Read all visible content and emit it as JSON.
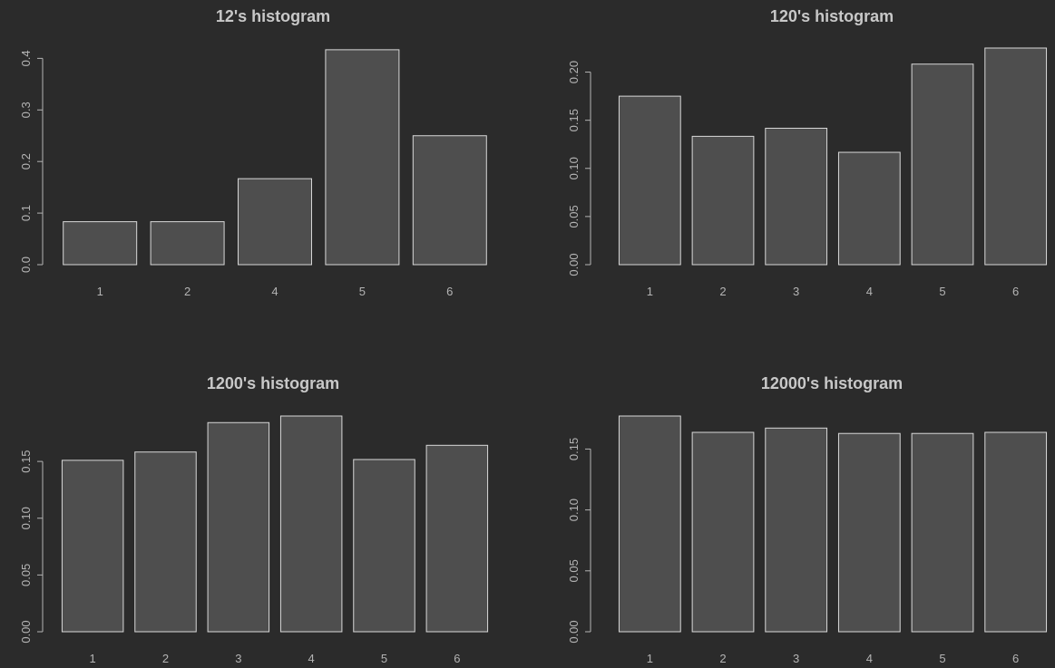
{
  "background": "#2b2b2b",
  "bar_fill": "#4e4e4e",
  "bar_stroke": "#d8d8d8",
  "text_color": "#b4b4b4",
  "chart_data": [
    {
      "type": "bar",
      "title": "12's histogram",
      "categories": [
        "1",
        "2",
        "4",
        "5",
        "6"
      ],
      "values": [
        0.0833,
        0.0833,
        0.1667,
        0.4167,
        0.25
      ],
      "ylim": [
        0,
        0.42
      ],
      "yticks": [
        0.0,
        0.1,
        0.2,
        0.3,
        0.4
      ],
      "ytick_labels": [
        "0.0",
        "0.1",
        "0.2",
        "0.3",
        "0.4"
      ],
      "xlabel": "",
      "ylabel": ""
    },
    {
      "type": "bar",
      "title": "120's histogram",
      "categories": [
        "1",
        "2",
        "3",
        "4",
        "5",
        "6"
      ],
      "values": [
        0.175,
        0.1333,
        0.1417,
        0.1167,
        0.2083,
        0.225
      ],
      "ylim": [
        0,
        0.225
      ],
      "yticks": [
        0.0,
        0.05,
        0.1,
        0.15,
        0.2
      ],
      "ytick_labels": [
        "0.00",
        "0.05",
        "0.10",
        "0.15",
        "0.20"
      ],
      "xlabel": "",
      "ylabel": ""
    },
    {
      "type": "bar",
      "title": "1200's histogram",
      "categories": [
        "1",
        "2",
        "3",
        "4",
        "5",
        "6"
      ],
      "values": [
        0.151,
        0.1583,
        0.1842,
        0.19,
        0.1517,
        0.1642
      ],
      "ylim": [
        0,
        0.19
      ],
      "yticks": [
        0.0,
        0.05,
        0.1,
        0.15
      ],
      "ytick_labels": [
        "0.00",
        "0.05",
        "0.10",
        "0.15"
      ],
      "xlabel": "",
      "ylabel": ""
    },
    {
      "type": "bar",
      "title": "12000's histogram",
      "categories": [
        "1",
        "2",
        "3",
        "4",
        "5",
        "6"
      ],
      "values": [
        0.1771,
        0.1637,
        0.1672,
        0.1628,
        0.1628,
        0.1637
      ],
      "ylim": [
        0,
        0.1771
      ],
      "yticks": [
        0.0,
        0.05,
        0.1,
        0.15
      ],
      "ytick_labels": [
        "0.00",
        "0.05",
        "0.10",
        "0.15"
      ],
      "xlabel": "",
      "ylabel": ""
    }
  ]
}
